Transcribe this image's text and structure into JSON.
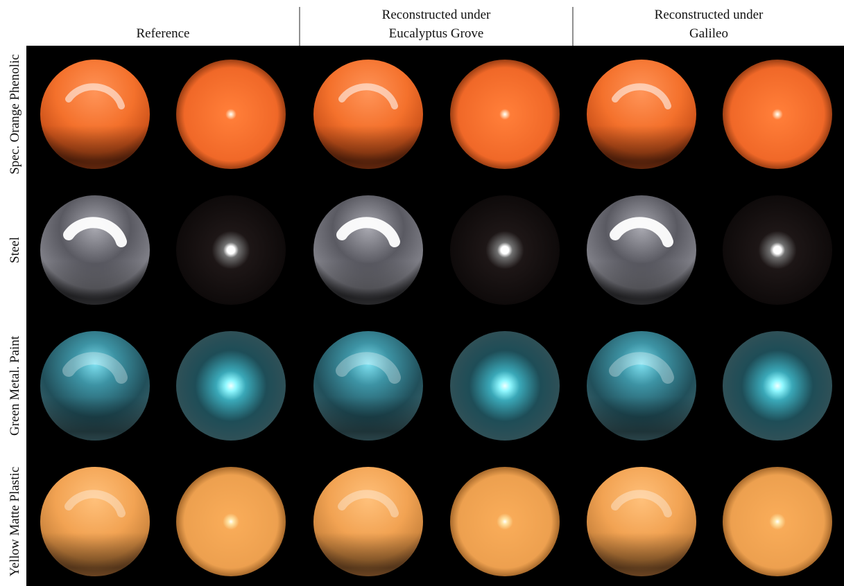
{
  "header": {
    "columns": [
      {
        "lines": [
          "Reference"
        ]
      },
      {
        "lines": [
          "Reconstructed under",
          "Eucalyptus Grove"
        ]
      },
      {
        "lines": [
          "Reconstructed under",
          "Galileo"
        ]
      }
    ]
  },
  "rows": [
    "Spec. Orange Phenolic",
    "Steel",
    "Green Metal. Paint",
    "Yellow Matte Plastic"
  ]
}
